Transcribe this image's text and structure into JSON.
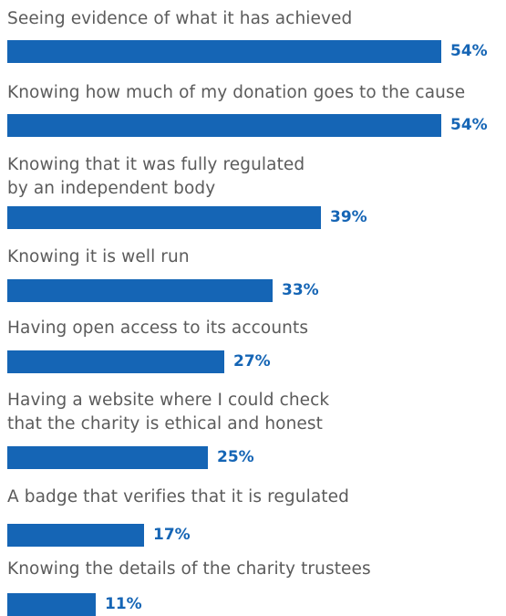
{
  "chart_data": {
    "type": "bar",
    "orientation": "horizontal",
    "unit": "%",
    "xlim": [
      0,
      54
    ],
    "grid": false,
    "categories": [
      "Seeing evidence of what it has achieved",
      "Knowing how much of my donation goes to the cause",
      "Knowing that it was fully regulated\nby an independent body",
      "Knowing it is well run",
      "Having open access to its accounts",
      "Having a website where I could check\nthat the charity is ethical and honest",
      "A badge that verifies that it is regulated",
      "Knowing the details of the charity trustees"
    ],
    "values": [
      54,
      54,
      39,
      33,
      27,
      25,
      17,
      11
    ],
    "data_labels": [
      "54%",
      "54%",
      "39%",
      "33%",
      "27%",
      "25%",
      "17%",
      "11%"
    ],
    "colors": {
      "bar": "#1565b5",
      "label_text": "#5b5b5b",
      "value_text": "#1565b5"
    }
  }
}
